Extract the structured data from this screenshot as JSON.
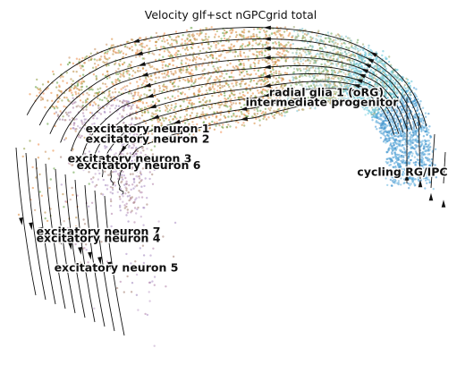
{
  "chart_data": {
    "type": "scatter",
    "title": "Velocity glf+sct nGPCgrid total",
    "xlabel": "",
    "ylabel": "",
    "grid": false,
    "overlay": "velocity-streamlines",
    "clusters": [
      {
        "name": "radial glia 1 (oRG)",
        "color": "#7fd3e3",
        "center": [
          0.71,
          0.8
        ]
      },
      {
        "name": "intermediate progenitor",
        "color": "#9aa86a",
        "center": [
          0.7,
          0.77
        ]
      },
      {
        "name": "cycling RG/IPC",
        "color": "#2f86c4",
        "center": [
          0.88,
          0.56
        ]
      },
      {
        "name": "excitatory neuron 1",
        "color": "#d98b3a",
        "center": [
          0.31,
          0.69
        ]
      },
      {
        "name": "excitatory neuron 2",
        "color": "#e8883a",
        "center": [
          0.31,
          0.66
        ]
      },
      {
        "name": "excitatory neuron 3",
        "color": "#8c9a3c",
        "center": [
          0.27,
          0.6
        ]
      },
      {
        "name": "excitatory neuron 6",
        "color": "#c98e5a",
        "center": [
          0.29,
          0.58
        ]
      },
      {
        "name": "excitatory neuron 7",
        "color": "#a98bc2",
        "center": [
          0.2,
          0.38
        ]
      },
      {
        "name": "excitatory neuron 4",
        "color": "#b07fa8",
        "center": [
          0.2,
          0.36
        ]
      },
      {
        "name": "excitatory neuron 5",
        "color": "#a07a6e",
        "center": [
          0.24,
          0.27
        ]
      }
    ]
  }
}
